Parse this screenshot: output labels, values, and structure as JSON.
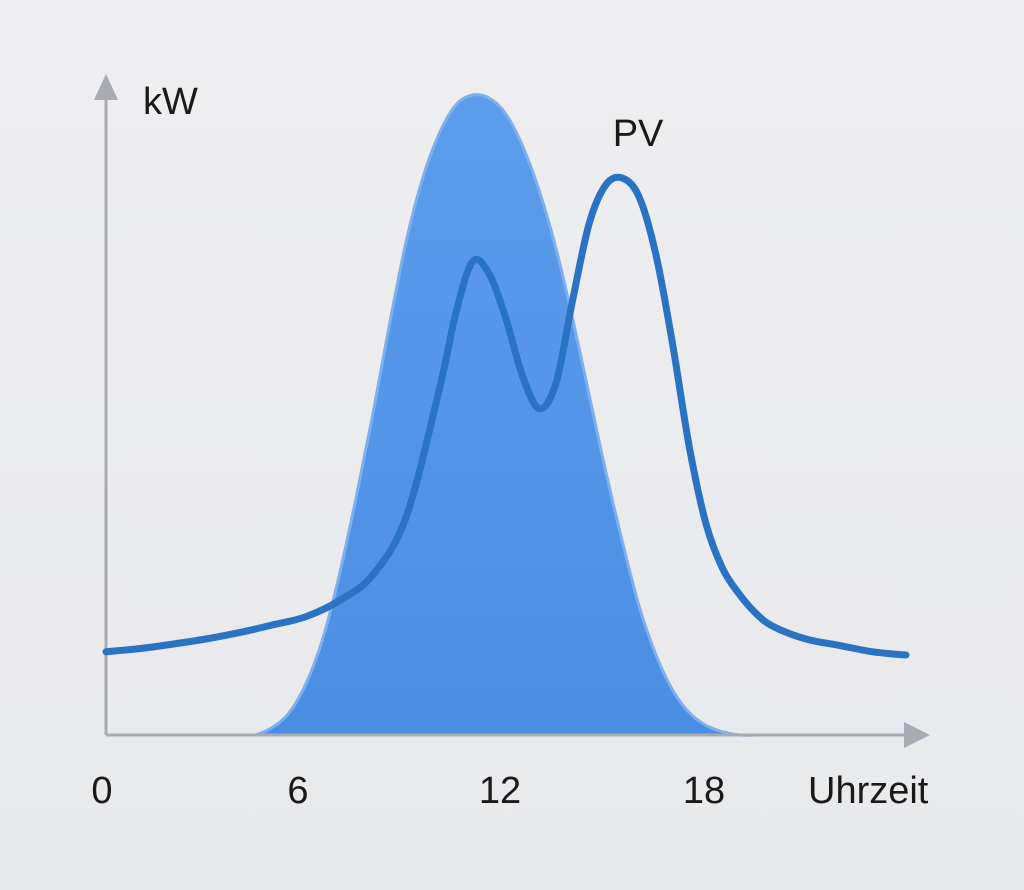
{
  "chart_data": {
    "type": "area",
    "xlabel": "Uhrzeit",
    "ylabel": "kW",
    "x_ticks": [
      "0",
      "6",
      "12",
      "18"
    ],
    "xlim": [
      0,
      24
    ],
    "ylim": [
      0,
      10
    ],
    "grid": false,
    "series": [
      {
        "name": "PV",
        "style": "filled-area",
        "x": [
          4.5,
          5.0,
          5.5,
          6.0,
          6.5,
          7.0,
          7.5,
          8.0,
          8.5,
          9.0,
          9.5,
          10.0,
          10.5,
          11.0,
          11.5,
          12.0,
          12.5,
          13.0,
          13.5,
          14.0,
          14.5,
          15.0,
          15.5,
          16.0,
          16.5,
          17.0,
          17.5,
          18.0,
          18.5,
          19.0,
          19.5,
          20.0
        ],
        "y": [
          0.0,
          0.12,
          0.35,
          0.8,
          1.5,
          2.5,
          3.7,
          5.0,
          6.4,
          7.7,
          8.7,
          9.4,
          9.85,
          10.0,
          9.95,
          9.7,
          9.2,
          8.5,
          7.6,
          6.5,
          5.3,
          4.1,
          3.0,
          2.0,
          1.25,
          0.7,
          0.35,
          0.15,
          0.05,
          0.0,
          0.0,
          0.0
        ],
        "color": "#4f93e6"
      },
      {
        "name": "",
        "style": "line",
        "x": [
          0,
          1,
          2,
          3,
          4,
          5,
          6,
          7,
          8,
          9,
          10,
          10.5,
          11,
          11.5,
          12,
          12.5,
          13,
          13.5,
          14,
          14.5,
          15,
          15.5,
          16,
          16.5,
          17,
          17.5,
          18,
          18.5,
          19,
          19.5,
          20,
          21,
          22,
          23,
          24
        ],
        "y": [
          1.3,
          1.35,
          1.42,
          1.5,
          1.6,
          1.72,
          1.85,
          2.1,
          2.5,
          3.4,
          5.4,
          6.6,
          7.4,
          7.2,
          6.5,
          5.6,
          5.1,
          5.5,
          6.8,
          8.0,
          8.6,
          8.7,
          8.4,
          7.5,
          6.1,
          4.5,
          3.3,
          2.6,
          2.2,
          1.9,
          1.7,
          1.5,
          1.4,
          1.3,
          1.25
        ],
        "color": "#2a72c2"
      }
    ],
    "annotations": [
      {
        "text": "PV",
        "x": 15.2,
        "y": 9.2
      }
    ]
  }
}
